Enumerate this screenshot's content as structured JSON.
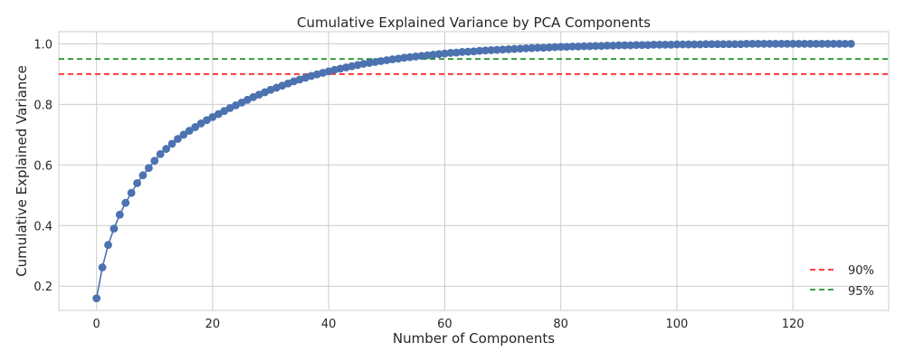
{
  "chart_data": {
    "type": "line",
    "title": "Cumulative Explained Variance by PCA Components",
    "xlabel": "Number of Components",
    "ylabel": "Cumulative Explained Variance",
    "xlim": [
      -6.5,
      136.5
    ],
    "ylim": [
      0.12,
      1.04
    ],
    "xticks": [
      0,
      20,
      40,
      60,
      80,
      100,
      120
    ],
    "yticks": [
      0.2,
      0.4,
      0.6,
      0.8,
      1.0
    ],
    "xtick_labels": [
      "0",
      "20",
      "40",
      "60",
      "80",
      "100",
      "120"
    ],
    "ytick_labels": [
      "0.2",
      "0.4",
      "0.6",
      "0.8",
      "1.0"
    ],
    "grid": true,
    "legend_position": "lower-right",
    "series": [
      {
        "color": "#4c72b0",
        "marker": "circle",
        "x_start": 0,
        "values": [
          0.16,
          0.262,
          0.336,
          0.39,
          0.436,
          0.475,
          0.508,
          0.54,
          0.566,
          0.59,
          0.614,
          0.636,
          0.653,
          0.67,
          0.686,
          0.7,
          0.713,
          0.725,
          0.737,
          0.748,
          0.758,
          0.768,
          0.778,
          0.788,
          0.797,
          0.806,
          0.815,
          0.824,
          0.832,
          0.84,
          0.848,
          0.855,
          0.862,
          0.869,
          0.876,
          0.882,
          0.888,
          0.894,
          0.899,
          0.904,
          0.909,
          0.914,
          0.918,
          0.922,
          0.926,
          0.93,
          0.934,
          0.937,
          0.94,
          0.943,
          0.946,
          0.949,
          0.951,
          0.954,
          0.956,
          0.958,
          0.96,
          0.962,
          0.964,
          0.966,
          0.968,
          0.97,
          0.971,
          0.973,
          0.974,
          0.975,
          0.977,
          0.978,
          0.979,
          0.98,
          0.981,
          0.982,
          0.983,
          0.984,
          0.985,
          0.986,
          0.987,
          0.987,
          0.988,
          0.989,
          0.99,
          0.99,
          0.991,
          0.991,
          0.992,
          0.992,
          0.993,
          0.993,
          0.994,
          0.994,
          0.995,
          0.995,
          0.995,
          0.996,
          0.996,
          0.996,
          0.997,
          0.997,
          0.997,
          0.997,
          0.998,
          0.998,
          0.998,
          0.998,
          0.998,
          0.999,
          0.999,
          0.999,
          0.999,
          0.999,
          0.999,
          0.999,
          1.0,
          1.0,
          1.0,
          1.0,
          1.0,
          1.0,
          1.0,
          1.0,
          1.0,
          1.0,
          1.0,
          1.0,
          1.0,
          1.0,
          1.0,
          1.0,
          1.0,
          1.0,
          1.0
        ]
      }
    ],
    "reference_lines": [
      {
        "name": "90%",
        "y": 0.9,
        "color": "#ff0000",
        "style": "dashed"
      },
      {
        "name": "95%",
        "y": 0.95,
        "color": "#008000",
        "style": "dashed"
      }
    ],
    "colors": {
      "grid": "#cccccc",
      "axes": "#cccccc",
      "text": "#262626"
    }
  }
}
